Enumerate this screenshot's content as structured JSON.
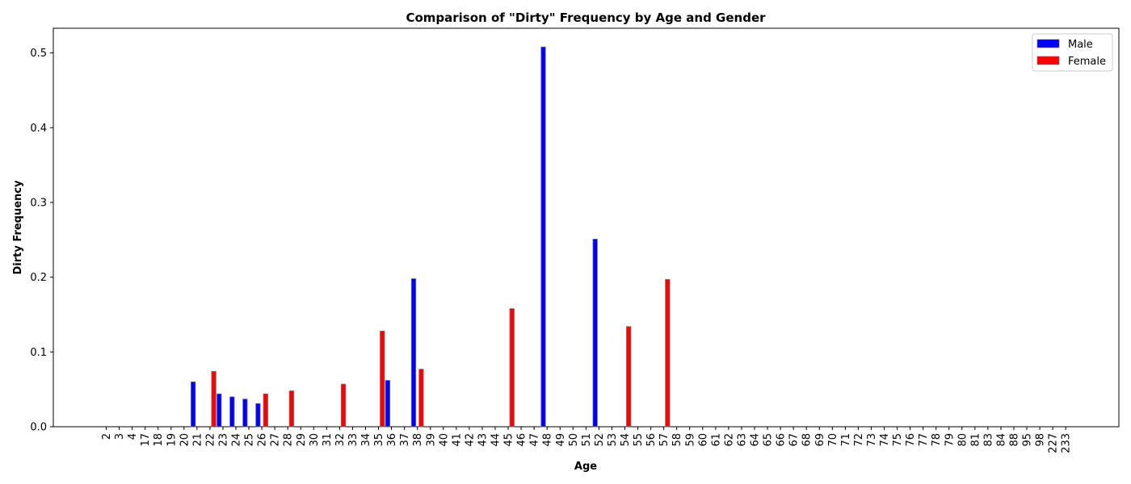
{
  "chart_data": {
    "type": "bar",
    "title": "Comparison of \"Dirty\" Frequency by Age and Gender",
    "xlabel": "Age",
    "ylabel": "Dirty Frequency",
    "ylim": [
      0,
      0.533
    ],
    "yticks": [
      0.0,
      0.1,
      0.2,
      0.3,
      0.4,
      0.5
    ],
    "yticks_labels": [
      "0.0",
      "0.1",
      "0.2",
      "0.3",
      "0.4",
      "0.5"
    ],
    "legend_position": "top-right",
    "grid": false,
    "categories": [
      "2",
      "3",
      "4",
      "17",
      "18",
      "19",
      "20",
      "21",
      "22",
      "23",
      "24",
      "25",
      "26",
      "27",
      "28",
      "29",
      "30",
      "31",
      "32",
      "33",
      "34",
      "35",
      "36",
      "37",
      "38",
      "39",
      "40",
      "41",
      "42",
      "43",
      "44",
      "45",
      "46",
      "47",
      "48",
      "49",
      "50",
      "51",
      "52",
      "53",
      "54",
      "55",
      "56",
      "57",
      "58",
      "59",
      "60",
      "61",
      "62",
      "63",
      "64",
      "65",
      "66",
      "67",
      "68",
      "69",
      "70",
      "71",
      "72",
      "73",
      "74",
      "75",
      "76",
      "77",
      "78",
      "79",
      "80",
      "81",
      "83",
      "84",
      "88",
      "95",
      "98",
      "227",
      "233"
    ],
    "series": [
      {
        "name": "Male",
        "color": "#0000ff",
        "values": [
          0,
          0,
          0,
          0,
          0,
          0,
          0,
          0.06,
          0,
          0.044,
          0.04,
          0.037,
          0.031,
          0,
          0,
          0,
          0,
          0,
          0,
          0,
          0,
          0,
          0.062,
          0,
          0.198,
          0,
          0,
          0,
          0,
          0,
          0,
          0,
          0,
          0,
          0.508,
          0,
          0,
          0,
          0.251,
          0,
          0,
          0,
          0,
          0,
          0,
          0,
          0,
          0,
          0,
          0,
          0,
          0,
          0,
          0,
          0,
          0,
          0,
          0,
          0,
          0,
          0,
          0,
          0,
          0,
          0,
          0,
          0,
          0,
          0,
          0,
          0,
          0,
          0,
          0,
          0
        ]
      },
      {
        "name": "Female",
        "color": "#ff0000",
        "values": [
          0,
          0,
          0,
          0,
          0,
          0,
          0,
          0,
          0.074,
          0,
          0,
          0,
          0.044,
          0,
          0.048,
          0,
          0,
          0,
          0.057,
          0,
          0,
          0.128,
          0,
          0,
          0.077,
          0,
          0,
          0,
          0,
          0,
          0,
          0.158,
          0,
          0,
          0,
          0,
          0,
          0,
          0,
          0,
          0.134,
          0,
          0,
          0.197,
          0,
          0,
          0,
          0,
          0,
          0,
          0,
          0,
          0,
          0,
          0,
          0,
          0,
          0,
          0,
          0,
          0,
          0,
          0,
          0,
          0,
          0,
          0,
          0,
          0,
          0,
          0,
          0,
          0,
          0,
          0
        ]
      }
    ]
  }
}
